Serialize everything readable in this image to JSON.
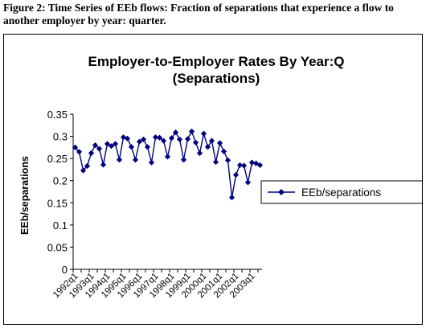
{
  "caption": "Figure 2: Time Series of EEb flows: Fraction of separations that experience a flow to another employer by year: quarter.",
  "chart_data": {
    "type": "line",
    "title_line1": "Employer-to-Employer Rates By Year:Q",
    "title_line2": "(Separations)",
    "xlabel": "",
    "ylabel": "EEb/separations",
    "ylim": [
      0,
      0.35
    ],
    "yticks": [
      "0",
      "0.05",
      "0.1",
      "0.15",
      "0.2",
      "0.25",
      "0.3",
      "0.35"
    ],
    "grid": false,
    "legend_position": "right",
    "x_tick_labels": [
      "1992q1",
      "1993q1",
      "1994q1",
      "1995q1",
      "1996q1",
      "1997q1",
      "1998q1",
      "1999q1",
      "2000q1",
      "2001q1",
      "2002q1",
      "2003q1"
    ],
    "x": [
      "1992q1",
      "1992q2",
      "1992q3",
      "1992q4",
      "1993q1",
      "1993q2",
      "1993q3",
      "1993q4",
      "1994q1",
      "1994q2",
      "1994q3",
      "1994q4",
      "1995q1",
      "1995q2",
      "1995q3",
      "1995q4",
      "1996q1",
      "1996q2",
      "1996q3",
      "1996q4",
      "1997q1",
      "1997q2",
      "1997q3",
      "1997q4",
      "1998q1",
      "1998q2",
      "1998q3",
      "1998q4",
      "1999q1",
      "1999q2",
      "1999q3",
      "1999q4",
      "2000q1",
      "2000q2",
      "2000q3",
      "2000q4",
      "2001q1",
      "2001q2",
      "2001q3",
      "2001q4",
      "2002q1",
      "2002q2",
      "2002q3",
      "2002q4",
      "2003q1",
      "2003q2",
      "2003q3"
    ],
    "series": [
      {
        "name": "EEb/separations",
        "color": "#000080",
        "values": [
          0.275,
          0.265,
          0.223,
          0.233,
          0.262,
          0.28,
          0.272,
          0.236,
          0.283,
          0.278,
          0.283,
          0.247,
          0.298,
          0.295,
          0.276,
          0.247,
          0.288,
          0.293,
          0.276,
          0.241,
          0.298,
          0.297,
          0.29,
          0.254,
          0.296,
          0.309,
          0.293,
          0.247,
          0.294,
          0.311,
          0.286,
          0.262,
          0.306,
          0.276,
          0.29,
          0.242,
          0.285,
          0.266,
          0.246,
          0.162,
          0.213,
          0.235,
          0.234,
          0.196,
          0.241,
          0.239,
          0.235
        ]
      }
    ]
  }
}
